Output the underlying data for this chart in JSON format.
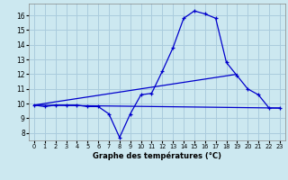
{
  "title": "Graphe des températures (°C)",
  "background_color": "#cce8f0",
  "grid_color": "#aaccdd",
  "line_color": "#0000cc",
  "xlim": [
    -0.5,
    23.5
  ],
  "ylim": [
    7.5,
    16.8
  ],
  "xticks": [
    0,
    1,
    2,
    3,
    4,
    5,
    6,
    7,
    8,
    9,
    10,
    11,
    12,
    13,
    14,
    15,
    16,
    17,
    18,
    19,
    20,
    21,
    22,
    23
  ],
  "yticks": [
    8,
    9,
    10,
    11,
    12,
    13,
    14,
    15,
    16
  ],
  "line1_x": [
    0,
    1,
    2,
    3,
    4,
    5,
    6,
    7,
    8,
    9,
    10,
    11,
    12,
    13,
    14,
    15,
    16,
    17,
    18,
    19,
    20,
    21,
    22,
    23
  ],
  "line1_y": [
    9.9,
    9.8,
    9.9,
    9.9,
    9.9,
    9.8,
    9.8,
    9.3,
    7.7,
    9.3,
    10.6,
    10.7,
    12.2,
    13.8,
    15.8,
    16.3,
    16.1,
    15.8,
    12.8,
    11.9,
    11.0,
    10.6,
    9.7,
    9.7
  ],
  "line2_x": [
    0,
    23
  ],
  "line2_y": [
    9.9,
    9.7
  ],
  "line3_x": [
    0,
    19
  ],
  "line3_y": [
    9.9,
    12.0
  ],
  "xlabel_fontsize": 6.0,
  "ytick_fontsize": 5.5,
  "xtick_fontsize": 4.8
}
